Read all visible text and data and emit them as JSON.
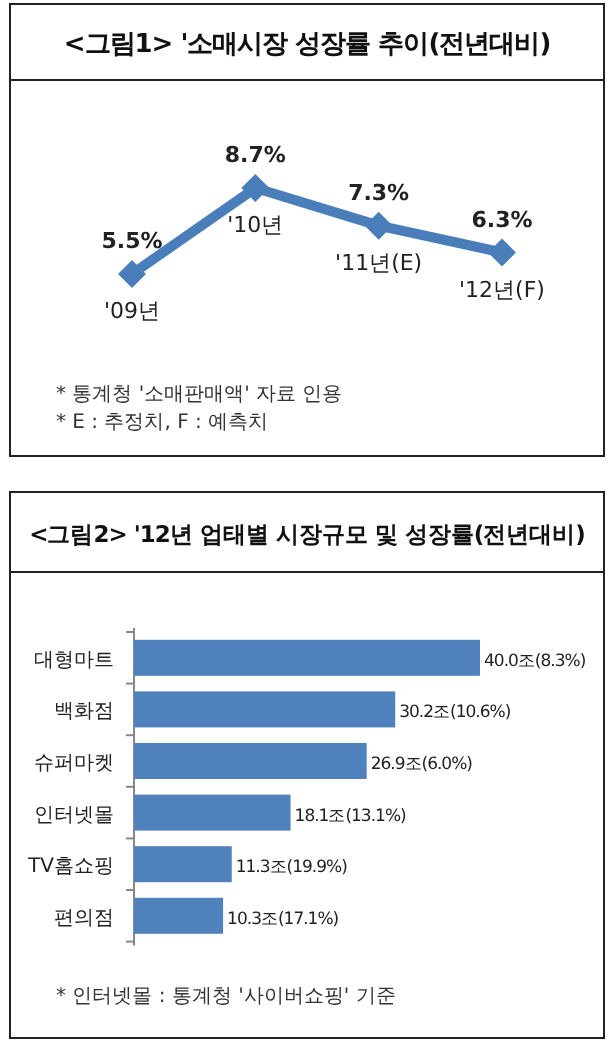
{
  "chart_data": [
    {
      "type": "line",
      "title": "<그림1> '소매시장 성장률 추이(전년대비)",
      "categories": [
        "'09년",
        "'10년",
        "'11년(E)",
        "'12년(F)"
      ],
      "series": [
        {
          "color": "#4a7ebb",
          "values": [
            5.5,
            8.7,
            7.3,
            6.3
          ],
          "value_labels": [
            "5.5%",
            "8.7%",
            "7.3%",
            "6.3%"
          ]
        }
      ],
      "marker": "diamond",
      "line_style": "solid",
      "annotations": [
        "* 통계청 '소매판매액' 자료 인용",
        "* E : 추정치, F : 예측치"
      ]
    },
    {
      "type": "bar",
      "orientation": "horizontal",
      "title": "<그림2> '12년 업태별 시장규모 및 성장률(전년대비)",
      "categories": [
        "대형마트",
        "백화점",
        "슈퍼마켓",
        "인터넷몰",
        "TV홈쇼핑",
        "편의점"
      ],
      "series": [
        {
          "color": "#4f81bd",
          "values": [
            40.0,
            30.2,
            26.9,
            18.1,
            11.3,
            10.3
          ],
          "value_labels": [
            "40.0조(8.3%)",
            "30.2조(10.6%)",
            "26.9조(6.0%)",
            "18.1조(13.1%)",
            "11.3조(19.9%)",
            "10.3조(17.1%)"
          ]
        }
      ],
      "annotations": [
        "* 인터넷몰 : 통계청 '사이버쇼핑' 기준"
      ]
    }
  ]
}
